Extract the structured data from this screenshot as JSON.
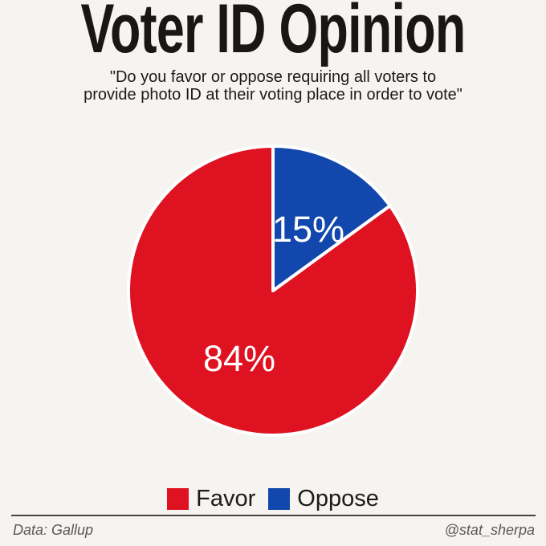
{
  "title": "Voter ID Opinion",
  "subtitle": {
    "full_text": "\"Do you favor or oppose requiring all voters to provide photo ID at their voting place in order to vote\"",
    "lines": [
      "\"Do you favor or oppose requiring all voters to",
      "provide photo ID at their voting place in order to vote\""
    ]
  },
  "chart_data": {
    "type": "pie",
    "title": "Voter ID Opinion",
    "categories": [
      "Favor",
      "Oppose"
    ],
    "values": [
      84,
      15
    ],
    "slice_labels": [
      "84%",
      "15%"
    ],
    "colors": {
      "favor": "#de1220",
      "oppose": "#1247ad"
    },
    "slice_label_color": "#ffffff",
    "start_angle_deg": 0,
    "direction": "clockwise",
    "first_slice": "Oppose",
    "slice_gap_color": "#ffffff",
    "legend_position": "bottom"
  },
  "legend": {
    "items": [
      {
        "label": "Favor",
        "color": "#de1220"
      },
      {
        "label": "Oppose",
        "color": "#1247ad"
      }
    ]
  },
  "footer": {
    "left": "Data: Gallup",
    "right": "@stat_sherpa"
  },
  "colors": {
    "background": "#f6f4f1",
    "text": "#1c1b1a",
    "muted_text": "#5b5955",
    "divider": "#45423f"
  }
}
